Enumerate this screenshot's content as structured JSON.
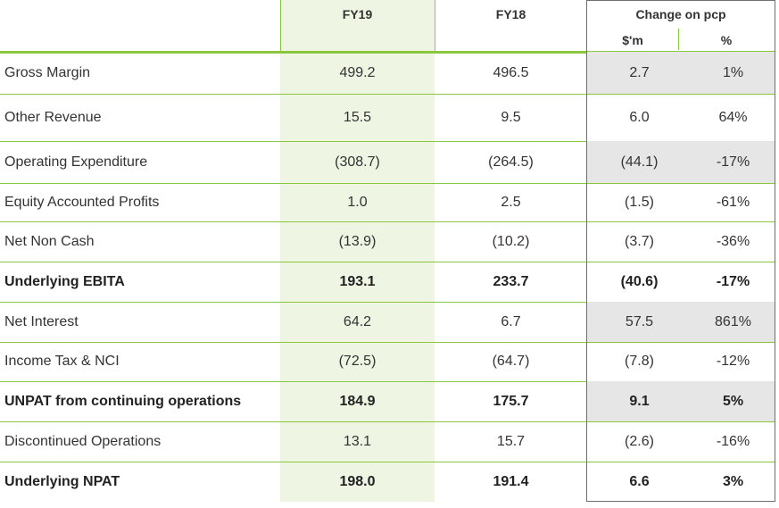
{
  "header": {
    "fy19": "FY19",
    "fy18": "FY18",
    "change_group": "Change on pcp",
    "change_dollars": "$'m",
    "change_pct": "%"
  },
  "rows": [
    {
      "label": "Gross Margin",
      "fy19": "499.2",
      "fy18": "496.5",
      "chg": "2.7",
      "pct": "1%",
      "bold": false,
      "shaded": true
    },
    {
      "label": "Other Revenue",
      "fy19": "15.5",
      "fy18": "9.5",
      "chg": "6.0",
      "pct": "64%",
      "bold": false,
      "shaded": false
    },
    {
      "label": "Operating Expenditure",
      "fy19": "(308.7)",
      "fy18": "(264.5)",
      "chg": "(44.1)",
      "pct": "-17%",
      "bold": false,
      "shaded": true
    },
    {
      "label": "Equity Accounted Profits",
      "fy19": "1.0",
      "fy18": "2.5",
      "chg": "(1.5)",
      "pct": "-61%",
      "bold": false,
      "shaded": false
    },
    {
      "label": "Net Non Cash",
      "fy19": "(13.9)",
      "fy18": "(10.2)",
      "chg": "(3.7)",
      "pct": "-36%",
      "bold": false,
      "shaded": false
    },
    {
      "label": "Underlying EBITA",
      "fy19": "193.1",
      "fy18": "233.7",
      "chg": "(40.6)",
      "pct": "-17%",
      "bold": true,
      "shaded": false
    },
    {
      "label": "Net Interest",
      "fy19": "64.2",
      "fy18": "6.7",
      "chg": "57.5",
      "pct": "861%",
      "bold": false,
      "shaded": true
    },
    {
      "label": "Income Tax & NCI",
      "fy19": "(72.5)",
      "fy18": "(64.7)",
      "chg": "(7.8)",
      "pct": "-12%",
      "bold": false,
      "shaded": false
    },
    {
      "label": "UNPAT from continuing operations",
      "fy19": "184.9",
      "fy18": "175.7",
      "chg": "9.1",
      "pct": "5%",
      "bold": true,
      "shaded": true
    },
    {
      "label": "Discontinued Operations",
      "fy19": "13.1",
      "fy18": "15.7",
      "chg": "(2.6)",
      "pct": "-16%",
      "bold": false,
      "shaded": false
    },
    {
      "label": "Underlying NPAT",
      "fy19": "198.0",
      "fy18": "191.4",
      "chg": "6.6",
      "pct": "3%",
      "bold": true,
      "shaded": false
    }
  ],
  "colors": {
    "accent_green": "#8cc63f",
    "fy19_column_fill": "#eef5e3",
    "shaded_cell": "#e6e6e6",
    "change_box_border": "#6f6f6f"
  }
}
